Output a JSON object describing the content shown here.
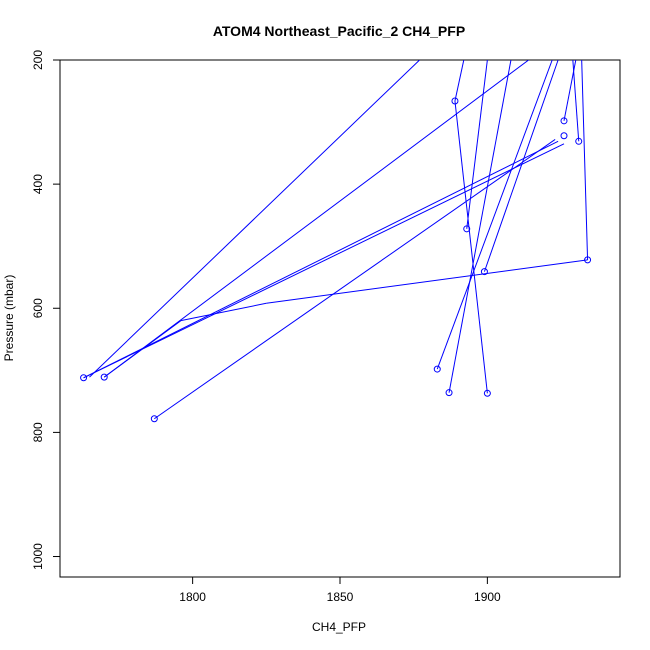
{
  "chart_data": {
    "type": "line",
    "title": "ATOM4 Northeast_Pacific_2 CH4_PFP",
    "xlabel": "CH4_PFP",
    "ylabel": "Pressure (mbar)",
    "xlim": [
      1755,
      1945
    ],
    "ylim": [
      1033,
      200
    ],
    "y_reversed": true,
    "grid": false,
    "legend": "none",
    "series_color": "#0000ff",
    "xticks": [
      1800,
      1850,
      1900
    ],
    "yticks": [
      200,
      400,
      600,
      800,
      1000
    ],
    "points": [
      {
        "x": 1763,
        "y": 712
      },
      {
        "x": 1770,
        "y": 711
      },
      {
        "x": 1787,
        "y": 778
      },
      {
        "x": 1883,
        "y": 698
      },
      {
        "x": 1887,
        "y": 736
      },
      {
        "x": 1889,
        "y": 266
      },
      {
        "x": 1893,
        "y": 472
      },
      {
        "x": 1899,
        "y": 541
      },
      {
        "x": 1900,
        "y": 737
      },
      {
        "x": 1926,
        "y": 298
      },
      {
        "x": 1926,
        "y": 322
      },
      {
        "x": 1931,
        "y": 331
      },
      {
        "x": 1934,
        "y": 522
      }
    ],
    "segments": [
      [
        [
          1763,
          712
        ],
        [
          1924,
          331
        ]
      ],
      [
        [
          1763,
          712
        ],
        [
          1926,
          335
        ]
      ],
      [
        [
          1770,
          711
        ],
        [
          1914,
          200
        ]
      ],
      [
        [
          1787,
          778
        ],
        [
          1923,
          328
        ]
      ],
      [
        [
          1765,
          711
        ],
        [
          1877,
          200
        ]
      ],
      [
        [
          1883,
          698
        ],
        [
          1922,
          200
        ]
      ],
      [
        [
          1887,
          736
        ],
        [
          1908,
          200
        ]
      ],
      [
        [
          1889,
          266
        ],
        [
          1900,
          737
        ]
      ],
      [
        [
          1893,
          472
        ],
        [
          1900,
          200
        ]
      ],
      [
        [
          1899,
          541
        ],
        [
          1924,
          200
        ]
      ],
      [
        [
          1926,
          298
        ],
        [
          1930,
          200
        ]
      ],
      [
        [
          1931,
          331
        ],
        [
          1929,
          200
        ]
      ],
      [
        [
          1934,
          522
        ],
        [
          1932,
          200
        ]
      ],
      [
        [
          1889,
          266
        ],
        [
          1892,
          200
        ]
      ],
      [
        [
          1934,
          522
        ],
        [
          1825,
          592
        ]
      ],
      [
        [
          1825,
          592
        ],
        [
          1796,
          620
        ]
      ],
      [
        [
          1796,
          620
        ],
        [
          1770,
          711
        ]
      ]
    ]
  }
}
